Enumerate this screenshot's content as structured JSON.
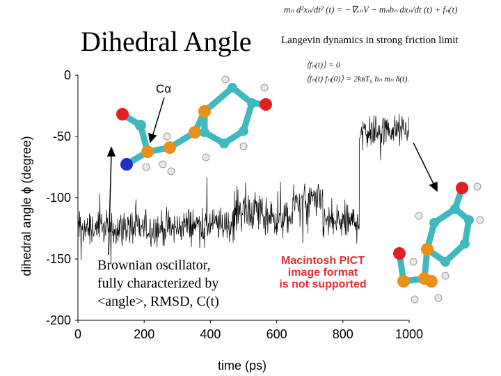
{
  "title": "Dihedral Angle",
  "equations": {
    "langevin": "mₙ d²xₙ/dt² (t) = −∇ₓₙV − mₙbₙ dxₙ/dt (t) + fₙ(t)",
    "note": "Langevin dynamics in strong friction limit",
    "corr1": "⟨fₙ(t)⟩   =   0",
    "corr2": "⟨fₙ(t) fₙ(0)⟩   =   2kʙT₀ bₙ mₙ δ(t)."
  },
  "callout": {
    "line1": "Brownian oscillator,",
    "line2": "fully characterized by",
    "line3": "<angle>, RMSD, C(t)"
  },
  "molecule_label": "Cα",
  "pict_notice": {
    "line1": "Macintosh PICT",
    "line2": "image format",
    "line3": "is not supported"
  },
  "chart_data": {
    "type": "line",
    "xlabel": "time (ps)",
    "ylabel": "dihedral angle ϕ (degree)",
    "xlim": [
      0,
      1000
    ],
    "ylim": [
      -200,
      0
    ],
    "xticks": [
      0,
      200,
      400,
      600,
      800,
      1000
    ],
    "yticks": [
      0,
      -50,
      -100,
      -150,
      -200
    ],
    "grid": false,
    "series": [
      {
        "segments": [
          {
            "x_start": 0,
            "x_end": 310,
            "y_mean": -125,
            "noise": 10
          },
          {
            "x_start": 310,
            "x_end": 470,
            "y_mean": -122,
            "noise": 10
          },
          {
            "x_start": 470,
            "x_end": 560,
            "y_mean": -110,
            "noise": 12
          },
          {
            "x_start": 560,
            "x_end": 650,
            "y_mean": -118,
            "noise": 10
          },
          {
            "x_start": 650,
            "x_end": 740,
            "y_mean": -103,
            "noise": 10
          },
          {
            "x_start": 740,
            "x_end": 850,
            "y_mean": -120,
            "noise": 11
          },
          {
            "x_start": 850,
            "x_end": 1000,
            "y_mean": -45,
            "noise": 9
          }
        ]
      }
    ]
  }
}
